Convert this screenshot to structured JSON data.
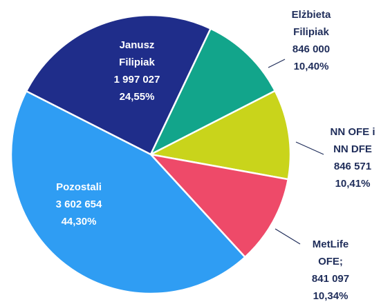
{
  "chart_data": {
    "type": "pie",
    "categories": [
      [
        "Janusz",
        "Filipiak"
      ],
      [
        "Elżbieta",
        "Filipiak"
      ],
      [
        "NN OFE i",
        "NN DFE"
      ],
      [
        "MetLife",
        "OFE;"
      ],
      [
        "Pozostali"
      ]
    ],
    "values": [
      1997027,
      846000,
      846571,
      841097,
      3602654
    ],
    "value_labels": [
      "1 997 027",
      "846 000",
      "846 571",
      "841 097",
      "3 602 654"
    ],
    "percent_labels": [
      "24,55%",
      "10,40%",
      "10,41%",
      "10,34%",
      "44,30%"
    ],
    "colors": [
      "#1f2d8a",
      "#12a58b",
      "#c9d41b",
      "#ee4a69",
      "#2f9df3"
    ]
  }
}
